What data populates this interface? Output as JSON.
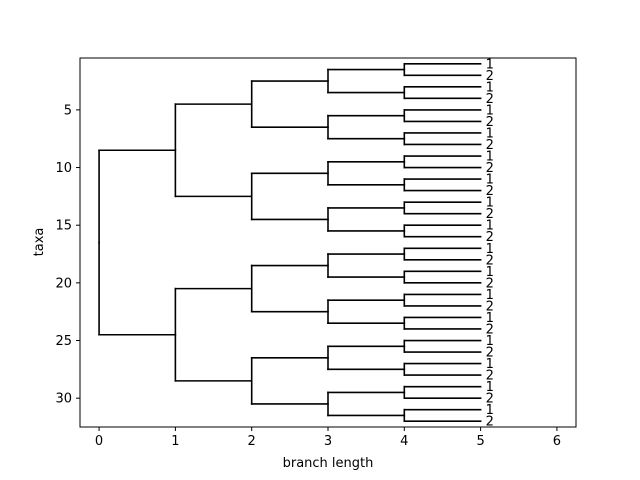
{
  "chart_data": {
    "type": "dendrogram",
    "title": "",
    "xlabel": "branch length",
    "ylabel": "taxa",
    "xlim": [
      -0.25,
      6.25
    ],
    "ylim": [
      32.5,
      0.5
    ],
    "y_inverted": true,
    "xticks": [
      0,
      1,
      2,
      3,
      4,
      5,
      6
    ],
    "yticks": [
      5,
      10,
      15,
      20,
      25,
      30
    ],
    "grid": false,
    "legend": "none",
    "line_color": "#000000",
    "tree": "binary, 5 levels, node at depth d sits at x = d, leaves at x = 5",
    "leaf_x": 5,
    "leaf_y": [
      1,
      2,
      3,
      4,
      5,
      6,
      7,
      8,
      9,
      10,
      11,
      12,
      13,
      14,
      15,
      16,
      17,
      18,
      19,
      20,
      21,
      22,
      23,
      24,
      25,
      26,
      27,
      28,
      29,
      30,
      31,
      32
    ],
    "leaf_labels": [
      "1",
      "2",
      "1",
      "2",
      "1",
      "2",
      "1",
      "2",
      "1",
      "2",
      "1",
      "2",
      "1",
      "2",
      "1",
      "2",
      "1",
      "2",
      "1",
      "2",
      "1",
      "2",
      "1",
      "2",
      "1",
      "2",
      "1",
      "2",
      "1",
      "2",
      "1",
      "2"
    ]
  }
}
